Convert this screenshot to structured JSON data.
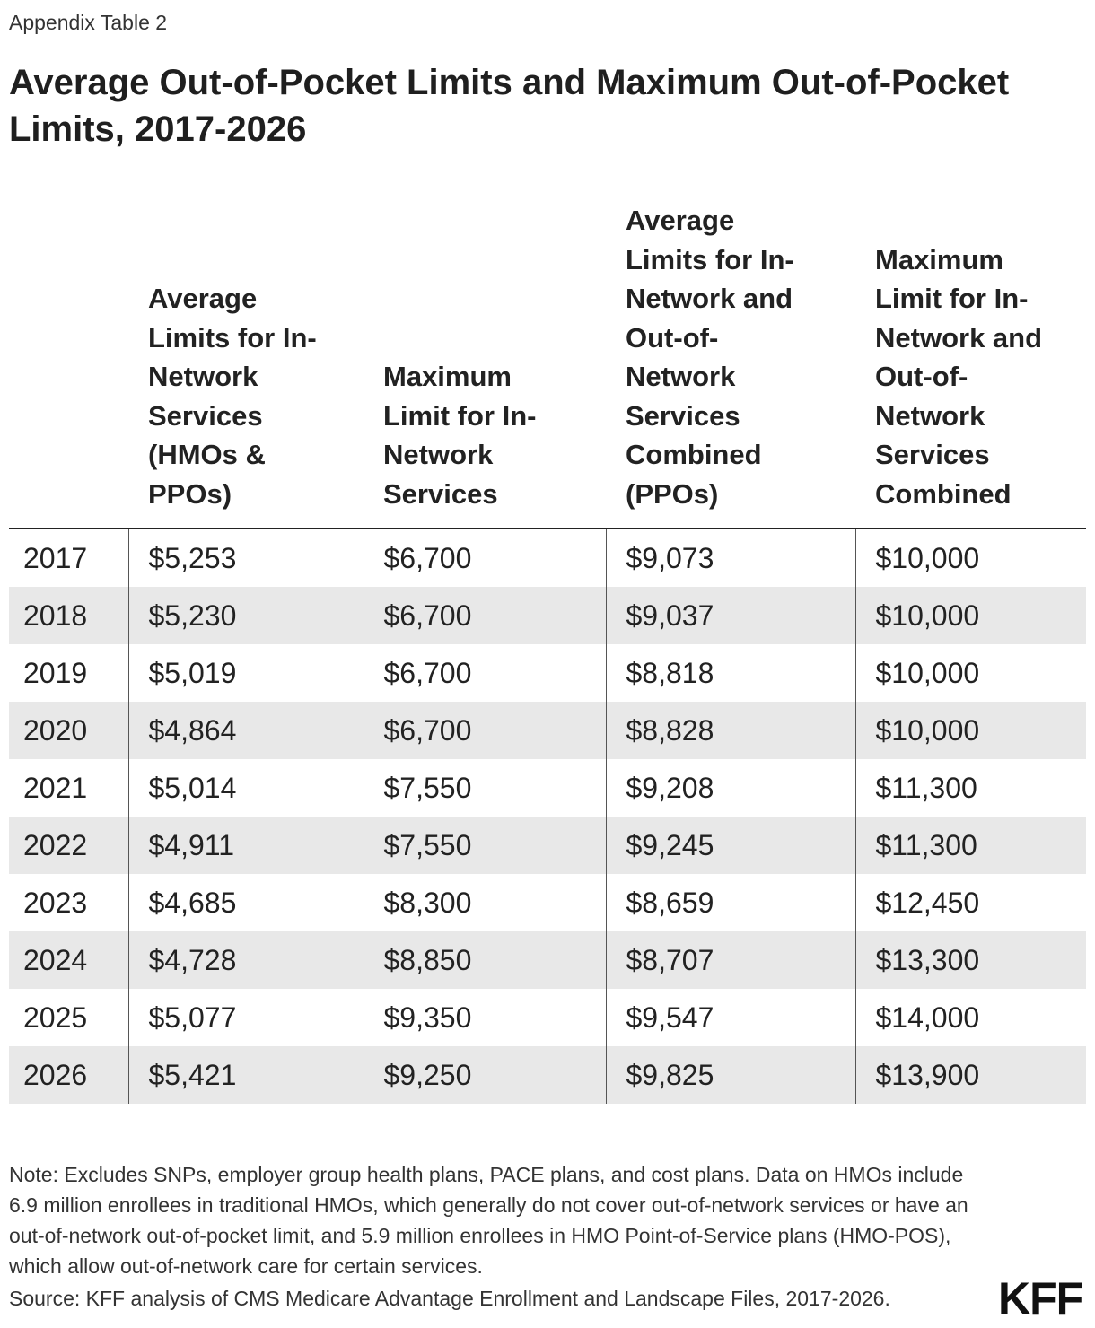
{
  "kicker": "Appendix Table 2",
  "title": "Average Out-of-Pocket Limits and Maximum Out-of-Pocket Limits, 2017-2026",
  "table": {
    "headers": [
      "",
      "Average\nLimits for In-\nNetwork\nServices\n(HMOs &\nPPOs)",
      "Maximum\nLimit for In-\nNetwork\nServices",
      "Average\nLimits for In-\nNetwork and\nOut-of-\nNetwork\nServices\nCombined\n(PPOs)",
      "Maximum\nLimit for In-\nNetwork and\nOut-of-\nNetwork\nServices\nCombined"
    ],
    "rows": [
      [
        "2017",
        "$5,253",
        "$6,700",
        "$9,073",
        "$10,000"
      ],
      [
        "2018",
        "$5,230",
        "$6,700",
        "$9,037",
        "$10,000"
      ],
      [
        "2019",
        "$5,019",
        "$6,700",
        "$8,818",
        "$10,000"
      ],
      [
        "2020",
        "$4,864",
        "$6,700",
        "$8,828",
        "$10,000"
      ],
      [
        "2021",
        "$5,014",
        "$7,550",
        "$9,208",
        "$11,300"
      ],
      [
        "2022",
        "$4,911",
        "$7,550",
        "$9,245",
        "$11,300"
      ],
      [
        "2023",
        "$4,685",
        "$8,300",
        "$8,659",
        "$12,450"
      ],
      [
        "2024",
        "$4,728",
        "$8,850",
        "$8,707",
        "$13,300"
      ],
      [
        "2025",
        "$5,077",
        "$9,350",
        "$9,547",
        "$14,000"
      ],
      [
        "2026",
        "$5,421",
        "$9,250",
        "$9,825",
        "$13,900"
      ]
    ]
  },
  "note": "Note: Excludes SNPs, employer group health plans, PACE plans, and cost plans. Data on HMOs include 6.9 million enrollees in traditional HMOs, which generally do not cover out-of-network services or have an out-of-network out-of-pocket limit, and 5.9 million enrollees in HMO Point-of-Service plans (HMO-POS), which allow out-of-network care for certain services.",
  "source": "Source: KFF analysis of CMS Medicare Advantage Enrollment and Landscape Files, 2017-2026.",
  "logo": "KFF",
  "colors": {
    "stripe": "#e8e8e8",
    "text": "#222222",
    "rule": "#222222"
  }
}
